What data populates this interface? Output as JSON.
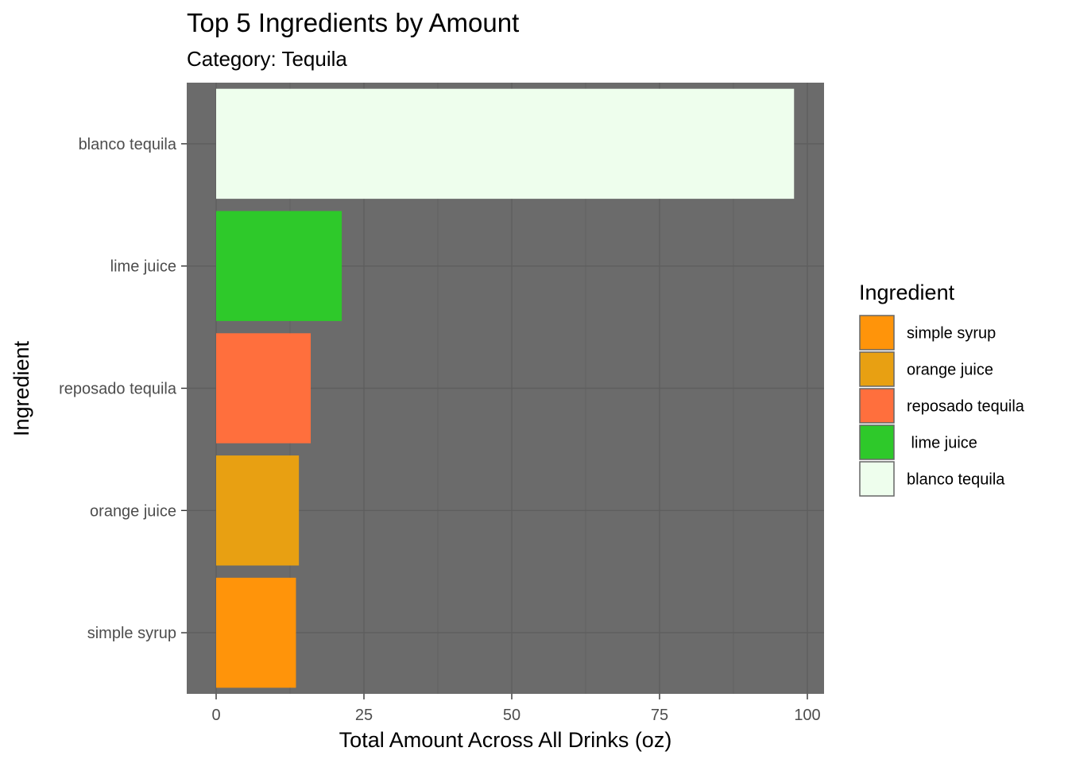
{
  "chart_data": {
    "type": "bar",
    "orientation": "horizontal",
    "title": "Top 5 Ingredients by Amount",
    "subtitle": "Category: Tequila",
    "xlabel": "Total Amount Across All Drinks (oz)",
    "ylabel": "Ingredient",
    "xlim": [
      -10,
      103
    ],
    "xticks": [
      0,
      25,
      50,
      75,
      100
    ],
    "xtick_labels": [
      "0",
      "25",
      "50",
      "75",
      "100"
    ],
    "grid": true,
    "panel_background": "#6b6b6b",
    "grid_color": "#5e5e5e",
    "categories": [
      "simple syrup",
      "orange juice",
      "reposado tequila",
      "lime juice",
      "blanco tequila"
    ],
    "values": [
      13.5,
      14,
      16,
      21.25,
      97.75
    ],
    "colors": [
      "#ff940a",
      "#e8a012",
      "#ff6f3d",
      "#2ec92a",
      "#eefeed"
    ],
    "legend": {
      "title": "Ingredient",
      "position": "right",
      "entries": [
        {
          "label": "simple syrup",
          "color": "#ff940a"
        },
        {
          "label": "orange juice",
          "color": "#e8a012"
        },
        {
          "label": "reposado tequila",
          "color": "#ff6f3d"
        },
        {
          "label": " lime juice",
          "color": "#2ec92a"
        },
        {
          "label": "blanco tequila",
          "color": "#eefeed"
        }
      ]
    }
  }
}
